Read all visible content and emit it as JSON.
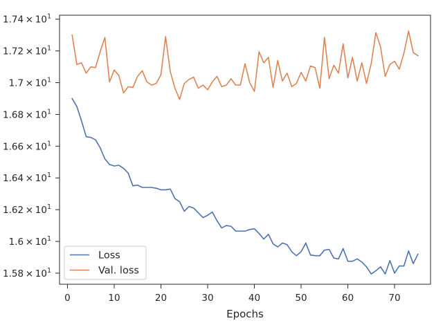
{
  "chart_data": {
    "type": "line",
    "title": "",
    "xlabel": "Epochs",
    "ylabel": "",
    "xlim": [
      -1.7,
      77.7
    ],
    "ylim": [
      15.73,
      17.425
    ],
    "grid": false,
    "legend_position": "lower-left",
    "x_ticks": [
      {
        "value": 0,
        "label": "0"
      },
      {
        "value": 10,
        "label": "10"
      },
      {
        "value": 20,
        "label": "20"
      },
      {
        "value": 30,
        "label": "30"
      },
      {
        "value": 40,
        "label": "40"
      },
      {
        "value": 50,
        "label": "50"
      },
      {
        "value": 60,
        "label": "60"
      },
      {
        "value": 70,
        "label": "70"
      }
    ],
    "y_ticks": [
      {
        "value": 15.8,
        "base": "1.58",
        "exp": "1"
      },
      {
        "value": 16.0,
        "base": "1.6",
        "exp": "1"
      },
      {
        "value": 16.2,
        "base": "1.62",
        "exp": "1"
      },
      {
        "value": 16.4,
        "base": "1.64",
        "exp": "1"
      },
      {
        "value": 16.6,
        "base": "1.66",
        "exp": "1"
      },
      {
        "value": 16.8,
        "base": "1.68",
        "exp": "1"
      },
      {
        "value": 17.0,
        "base": "1.7",
        "exp": "1"
      },
      {
        "value": 17.2,
        "base": "1.72",
        "exp": "1"
      },
      {
        "value": 17.4,
        "base": "1.74",
        "exp": "1"
      }
    ],
    "x": [
      1,
      2,
      3,
      4,
      5,
      6,
      7,
      8,
      9,
      10,
      11,
      12,
      13,
      14,
      15,
      16,
      17,
      18,
      19,
      20,
      21,
      22,
      23,
      24,
      25,
      26,
      27,
      28,
      29,
      30,
      31,
      32,
      33,
      34,
      35,
      36,
      37,
      38,
      39,
      40,
      41,
      42,
      43,
      44,
      45,
      46,
      47,
      48,
      49,
      50,
      51,
      52,
      53,
      54,
      55,
      56,
      57,
      58,
      59,
      60,
      61,
      62,
      63,
      64,
      65,
      66,
      67,
      68,
      69,
      70,
      71,
      72,
      73,
      74,
      75
    ],
    "series": [
      {
        "name": "Loss",
        "color": "#4c72b0",
        "values": [
          16.9,
          16.85,
          16.76,
          16.66,
          16.655,
          16.64,
          16.59,
          16.52,
          16.485,
          16.475,
          16.48,
          16.46,
          16.43,
          16.35,
          16.355,
          16.34,
          16.34,
          16.34,
          16.335,
          16.325,
          16.325,
          16.33,
          16.27,
          16.25,
          16.19,
          16.22,
          16.21,
          16.18,
          16.15,
          16.165,
          16.185,
          16.13,
          16.085,
          16.1,
          16.095,
          16.065,
          16.065,
          16.065,
          16.075,
          16.08,
          16.05,
          16.015,
          16.045,
          15.985,
          15.965,
          15.99,
          15.98,
          15.935,
          15.91,
          15.935,
          15.99,
          15.915,
          15.91,
          15.91,
          15.945,
          15.95,
          15.895,
          15.89,
          15.955,
          15.875,
          15.875,
          15.89,
          15.87,
          15.84,
          15.795,
          15.815,
          15.84,
          15.795,
          15.88,
          15.8,
          15.845,
          15.845,
          15.94,
          15.86,
          15.92
        ]
      },
      {
        "name": "Val. loss",
        "color": "#dd8452",
        "values": [
          17.3,
          17.115,
          17.125,
          17.06,
          17.1,
          17.095,
          17.195,
          17.285,
          17.005,
          17.08,
          17.045,
          16.935,
          16.975,
          16.97,
          17.04,
          17.075,
          17.005,
          16.985,
          16.995,
          17.05,
          17.29,
          17.07,
          16.965,
          16.895,
          16.995,
          17.02,
          17.035,
          16.965,
          16.985,
          16.955,
          17.005,
          17.04,
          16.975,
          16.985,
          17.025,
          16.985,
          16.985,
          17.12,
          17.0,
          16.945,
          17.195,
          17.125,
          17.16,
          16.97,
          17.14,
          17.01,
          17.06,
          16.975,
          16.995,
          17.065,
          17.01,
          17.105,
          17.095,
          16.965,
          17.285,
          17.025,
          17.11,
          17.06,
          17.245,
          17.03,
          17.16,
          17.01,
          17.125,
          16.995,
          17.12,
          17.315,
          17.225,
          17.04,
          17.115,
          17.135,
          17.085,
          17.185,
          17.325,
          17.19,
          17.17
        ]
      }
    ]
  }
}
